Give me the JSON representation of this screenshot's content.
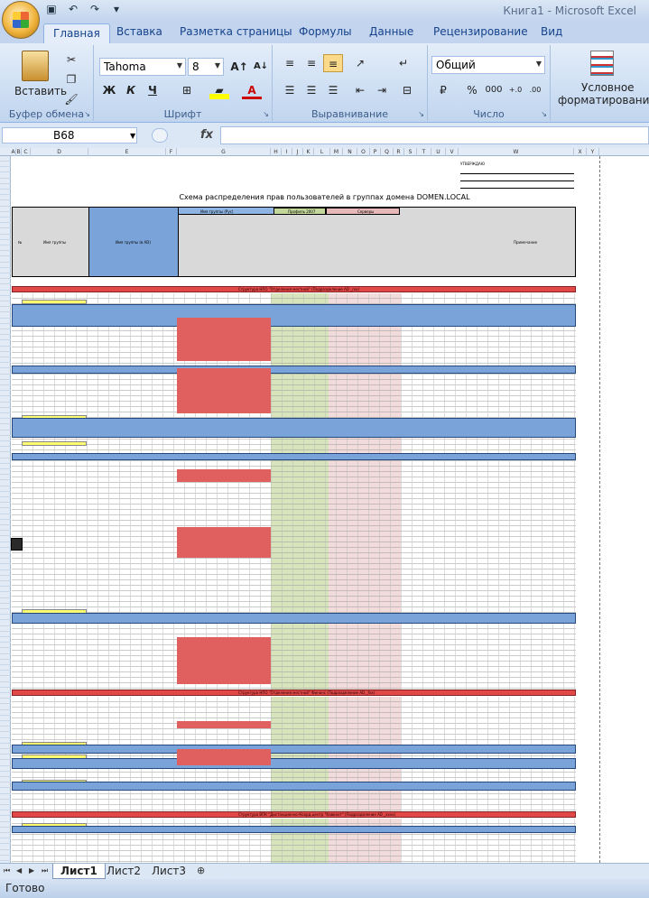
{
  "window": {
    "title": "Книга1 - Microsoft Excel"
  },
  "quick_access": {
    "icons": [
      "save-icon",
      "undo-icon",
      "redo-icon",
      "customize-icon"
    ]
  },
  "tabs": [
    {
      "label": "Главная",
      "active": true
    },
    {
      "label": "Вставка"
    },
    {
      "label": "Разметка страницы"
    },
    {
      "label": "Формулы"
    },
    {
      "label": "Данные"
    },
    {
      "label": "Рецензирование"
    },
    {
      "label": "Вид"
    }
  ],
  "ribbon": {
    "clipboard": {
      "paste_label": "Вставить",
      "group_label": "Буфер обмена"
    },
    "font": {
      "name": "Tahoma",
      "size": "8",
      "bold": "Ж",
      "italic": "К",
      "underline": "Ч",
      "group_label": "Шрифт"
    },
    "alignment": {
      "group_label": "Выравнивание"
    },
    "number": {
      "format": "Общий",
      "percent": "%",
      "thousands": "000",
      "group_label": "Число"
    },
    "styles": {
      "cond_format_line1": "Условное",
      "cond_format_line2": "форматирование"
    }
  },
  "formula_bar": {
    "name_box": "B68",
    "fx": "fx",
    "formula": ""
  },
  "sheet": {
    "columns": [
      "A",
      "B",
      "C",
      "D",
      "E",
      "F",
      "G",
      "H",
      "I",
      "J",
      "K",
      "L",
      "M",
      "N",
      "O",
      "P",
      "Q",
      "R",
      "S",
      "T",
      "U",
      "V",
      "W",
      "X",
      "Y"
    ],
    "approved": "УТВЕРЖДАЮ",
    "title": "Схема распределения прав пользователей в группах домена DOMEN.LOCAL",
    "headers": {
      "num": "№",
      "group_name": "Имя группы",
      "group_name_ad": "Имя группы (в AD)",
      "group_section": "Имя группы (Рус)",
      "profile": "Профиль 2007",
      "servers": "Серверы",
      "note": "Примечание"
    },
    "banners": [
      "Структура НПО \"Отделения местной\" (Подразделение AD _rxx)",
      "Структура НПО \"Отделения местной\" Финанс (Подразделение AD _fxx)",
      "Структура ВПК \"Дистанционно-Коорд.центр \"Кавконт\" (Подразделение AD _xxxx)"
    ]
  },
  "sheet_tabs": [
    {
      "label": "Лист1",
      "active": true
    },
    {
      "label": "Лист2"
    },
    {
      "label": "Лист3"
    }
  ],
  "status": {
    "text": "Готово"
  }
}
